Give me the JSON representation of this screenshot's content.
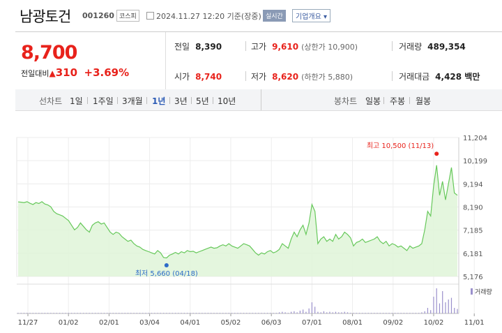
{
  "header": {
    "name": "남광토건",
    "code": "001260",
    "market": "코스피",
    "datetime": "2024.11.27 12:20 기준(장중)",
    "realtime": "실시간",
    "overview": "기업개요 ▾"
  },
  "quote": {
    "price": "8,700",
    "change_label": "전일대비",
    "change_arrow": "▲",
    "change": "310",
    "change_pct": "+3.69%",
    "prev_close": {
      "label": "전일",
      "value": "8,390"
    },
    "open": {
      "label": "시가",
      "value": "8,740"
    },
    "high": {
      "label": "고가",
      "value": "9,610",
      "sub": "(상한가 10,900)"
    },
    "low": {
      "label": "저가",
      "value": "8,620",
      "sub": "(하한가 5,880)"
    },
    "volume": {
      "label": "거래량",
      "value": "489,354"
    },
    "amount": {
      "label": "거래대금",
      "value": "4,428 백만"
    }
  },
  "tabs": {
    "line_label": "선차트",
    "line": [
      "1일",
      "1주일",
      "3개월",
      "1년",
      "3년",
      "5년",
      "10년"
    ],
    "active": "1년",
    "candle_label": "봉차트",
    "candle": [
      "일봉",
      "주봉",
      "월봉"
    ]
  },
  "colors": {
    "up": "#e8221b",
    "line": "#66c85a",
    "fill": "#dff5d8",
    "vol": "#9a90cc",
    "blue": "#2c6bc8"
  },
  "chart_data": {
    "type": "area",
    "y_ticks": [
      "11,204",
      "10,199",
      "9,194",
      "8,190",
      "7,185",
      "6,181",
      "5,176"
    ],
    "ylim": [
      5176,
      11204
    ],
    "x_labels": [
      "11/27",
      "01/02",
      "02/01",
      "03/04",
      "04/01",
      "05/02",
      "06/03",
      "07/01",
      "08/01",
      "09/02",
      "10/02",
      "11/01"
    ],
    "max_annotation": "최고 10,500 (11/13)",
    "min_annotation": "최저 5,660 (04/18)",
    "volume_legend": "거래량",
    "series": [
      {
        "values": [
          8410,
          8400,
          8380,
          8420,
          8350,
          8300,
          8380,
          8340,
          8420,
          8320,
          8280,
          8200,
          8000,
          7900,
          7850,
          7800,
          7700,
          7600,
          7400,
          7200,
          7300,
          7500,
          7350,
          7200,
          7100,
          7400,
          7500,
          7550,
          7450,
          7500,
          7300,
          7100,
          7000,
          7100,
          7050,
          6900,
          6800,
          6700,
          6750,
          6600,
          6500,
          6450,
          6350,
          6300,
          6250,
          6200,
          6150,
          6300,
          6200,
          6000,
          5980,
          6100,
          6150,
          6220,
          6150,
          6250,
          6200,
          6300,
          6250,
          6270,
          6200,
          6250,
          6300,
          6350,
          6400,
          6450,
          6400,
          6420,
          6500,
          6550,
          6500,
          6600,
          6500,
          6450,
          6400,
          6500,
          6600,
          6550,
          6500,
          6350,
          6200,
          6100,
          6200,
          6150,
          6250,
          6300,
          6200,
          6250,
          6350,
          6600,
          6500,
          6400,
          6800,
          7100,
          6900,
          7200,
          7400,
          7000,
          7500,
          8300,
          8000,
          6600,
          6800,
          6900,
          6700,
          6800,
          6700,
          7000,
          6800,
          6900,
          7100,
          7000,
          6850,
          6500,
          6650,
          6700,
          6800,
          6650,
          6700,
          6750,
          6800,
          6900,
          6700,
          6600,
          6700,
          6500,
          6600,
          6550,
          6450,
          6500,
          6400,
          6300,
          6500,
          6400,
          6450,
          6500,
          6600,
          7200,
          8000,
          7800,
          9100,
          10000,
          8700,
          9300,
          8500,
          9200,
          9900,
          8800,
          8700
        ]
      }
    ],
    "volume": [
      1,
      1,
      1,
      1,
      1,
      1,
      1,
      1,
      1,
      1,
      1,
      1,
      1,
      1,
      1,
      1,
      1,
      1,
      1,
      1,
      1,
      1,
      1,
      1,
      1,
      1,
      1,
      1,
      1,
      1,
      1,
      1,
      1,
      1,
      1,
      1,
      1,
      1,
      1,
      1,
      1,
      1,
      1,
      1,
      1,
      1,
      1,
      1,
      1,
      1,
      1,
      1,
      1,
      1,
      1,
      1,
      1,
      1,
      1,
      1,
      1,
      1,
      1,
      1,
      1,
      1,
      1,
      1,
      1,
      1,
      1,
      1,
      1,
      1,
      1,
      1,
      1,
      1,
      1,
      1,
      1,
      1,
      1,
      1,
      1,
      1,
      1,
      1,
      2,
      3,
      2,
      1,
      3,
      4,
      2,
      5,
      7,
      3,
      9,
      20,
      12,
      3,
      2,
      4,
      2,
      3,
      2,
      3,
      2,
      2,
      3,
      2,
      1,
      1,
      1,
      1,
      1,
      1,
      1,
      1,
      1,
      1,
      1,
      1,
      1,
      1,
      1,
      1,
      1,
      1,
      1,
      1,
      1,
      1,
      1,
      1,
      2,
      4,
      10,
      6,
      30,
      45,
      18,
      40,
      20,
      25,
      28,
      10,
      8
    ]
  }
}
